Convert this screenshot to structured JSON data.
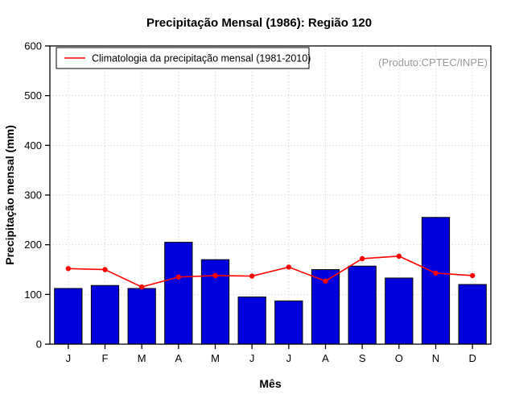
{
  "chart_data": {
    "type": "bar",
    "title": "Precipitação Mensal (1986): Região 120",
    "annotation": "(Produto:CPTEC/INPE)",
    "xlabel": "Mês",
    "ylabel": "Precipitação mensal (mm)",
    "categories": [
      "J",
      "F",
      "M",
      "A",
      "M",
      "J",
      "J",
      "A",
      "S",
      "O",
      "N",
      "D"
    ],
    "series": [
      {
        "name": "Precipitação mensal 1986",
        "type": "bar",
        "color": "#0000dd",
        "values": [
          112,
          118,
          112,
          205,
          170,
          95,
          87,
          150,
          157,
          133,
          255,
          120
        ]
      },
      {
        "name": "Climatologia da precipitação mensal (1981-2010)",
        "type": "line",
        "color": "#ff0000",
        "values": [
          152,
          150,
          115,
          135,
          138,
          137,
          155,
          127,
          172,
          177,
          143,
          138
        ]
      }
    ],
    "ylim": [
      0,
      600
    ],
    "yticks": [
      0,
      100,
      200,
      300,
      400,
      500,
      600
    ],
    "grid": true,
    "legend_position": "top-left",
    "colors": {
      "bar_fill": "#0000dd",
      "bar_stroke": "#000000",
      "line_color": "#ff0000",
      "grid_color": "#c8c8c8",
      "annotation_color": "#999999"
    }
  }
}
